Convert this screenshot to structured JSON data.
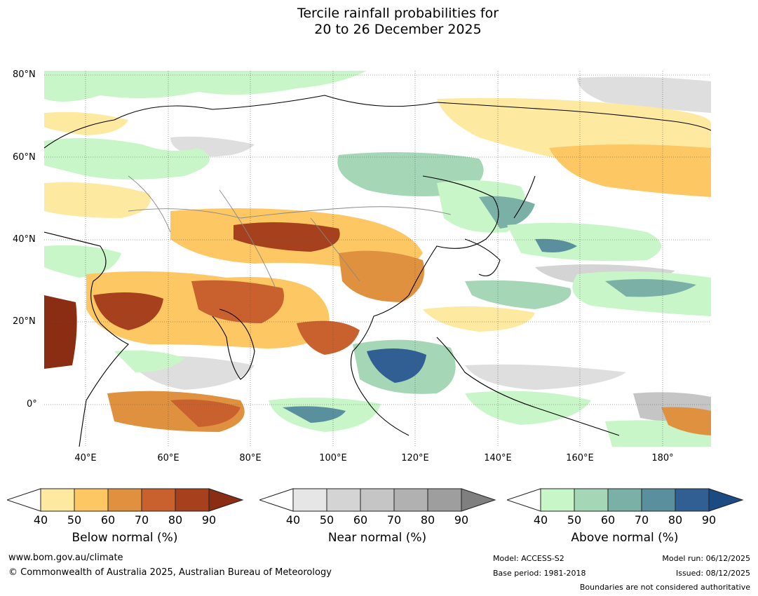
{
  "title": {
    "line1": "Tercile rainfall probabilities for",
    "line2": "20 to 26 December 2025"
  },
  "map": {
    "lat_labels": [
      "80°N",
      "60°N",
      "40°N",
      "20°N",
      "0°"
    ],
    "lon_labels": [
      "40°E",
      "60°E",
      "80°E",
      "100°E",
      "120°E",
      "140°E",
      "160°E",
      "180°"
    ],
    "region": "Asia and Western Pacific"
  },
  "legend": {
    "below": {
      "title": "Below normal (%)",
      "ticks": [
        "40",
        "50",
        "60",
        "70",
        "80",
        "90"
      ],
      "colors": [
        "#ffffff",
        "#fee9a0",
        "#fdc763",
        "#e0913f",
        "#c9612e",
        "#a6401d",
        "#8b2d12"
      ]
    },
    "near": {
      "title": "Near normal (%)",
      "ticks": [
        "40",
        "50",
        "60",
        "70",
        "80",
        "90"
      ],
      "colors": [
        "#ffffff",
        "#e6e6e6",
        "#d4d4d4",
        "#c5c5c5",
        "#b1b1b1",
        "#9e9e9e",
        "#7f7f7f"
      ]
    },
    "above": {
      "title": "Above normal (%)",
      "ticks": [
        "40",
        "50",
        "60",
        "70",
        "80",
        "90"
      ],
      "colors": [
        "#ffffff",
        "#c8f6c8",
        "#a5d6b6",
        "#7bb0a6",
        "#5a8f9e",
        "#315f94",
        "#1b4b82"
      ]
    }
  },
  "footer": {
    "website": "www.bom.gov.au/climate",
    "copyright": "© Commonwealth of Australia 2025, Australian Bureau of Meteorology",
    "model": "Model: ACCESS-S2",
    "base_period": "Base period: 1981-2018",
    "model_run": "Model run: 06/12/2025",
    "issued": "Issued: 08/12/2025",
    "disclaimer": "Boundaries are not considered authoritative"
  }
}
